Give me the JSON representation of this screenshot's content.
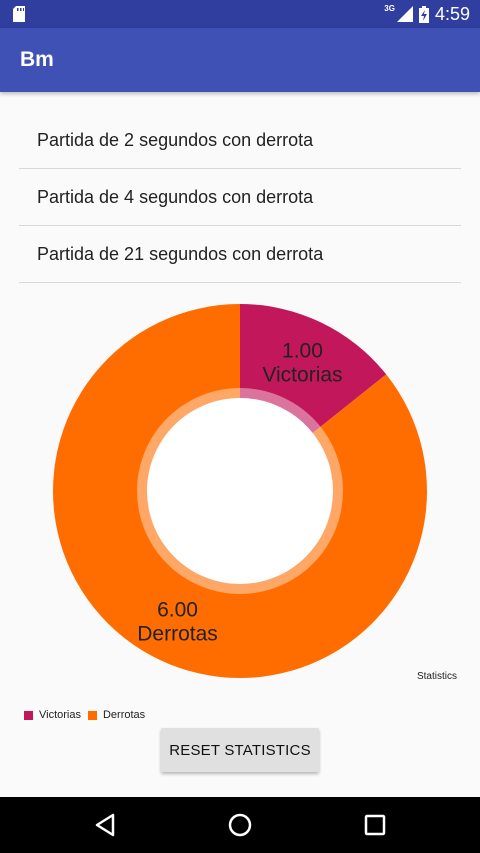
{
  "status_bar": {
    "time": "4:59",
    "network": "3G"
  },
  "app": {
    "title": "Bm"
  },
  "games": [
    {
      "label": "Partida de 2 segundos con derrota"
    },
    {
      "label": "Partida de 4 segundos con derrota"
    },
    {
      "label": "Partida de 21 segundos con derrota"
    }
  ],
  "chart_data": {
    "type": "pie",
    "donut": true,
    "caption": "Statistics",
    "slices": [
      {
        "label": "Victorias",
        "value": 1.0,
        "value_text": "1.00",
        "color": "#c2185b"
      },
      {
        "label": "Derrotas",
        "value": 6.0,
        "value_text": "6.00",
        "color": "#ff6d00"
      }
    ],
    "legend_position": "bottom-left"
  },
  "buttons": {
    "reset_label": "RESET STATISTICS"
  },
  "colors": {
    "primary": "#3f51b5",
    "primary_dark": "#303f9f"
  }
}
